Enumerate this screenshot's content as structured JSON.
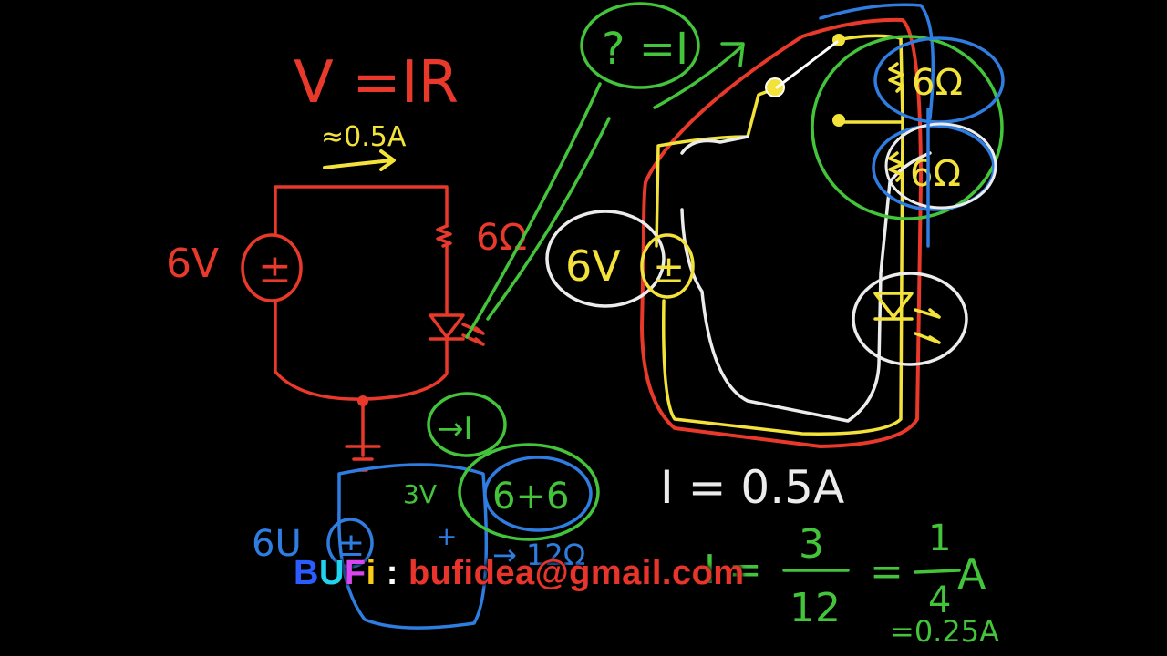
{
  "colors": {
    "background": "#000000",
    "red": "#e8392b",
    "yellow": "#f2e23a",
    "white": "#ececec",
    "green": "#43c43a",
    "blue": "#2f7de0",
    "watermark_email": "#e8342a"
  },
  "left_circuit": {
    "formula": "V =IR",
    "approx_current": "≈0.5A",
    "voltage_label": "6V",
    "source_symbol": "±",
    "resistance_label": "6Ω"
  },
  "question_bubble": {
    "text": "? =I"
  },
  "right_circuit": {
    "source_voltage": "6V",
    "source_symbol": "±",
    "resistor_top": "6Ω",
    "resistor_bottom": "6Ω",
    "current_result": "I = 0.5A"
  },
  "bottom_circuit": {
    "current_bubble": "→I",
    "voltage_label": "3V",
    "plus_sign": "+",
    "sum_label": "6+6",
    "source_voltage": "6U",
    "source_symbol": "±",
    "equivalent": "→ 12Ω"
  },
  "fraction_calc": {
    "lhs": "I =",
    "numerator": "3",
    "denominator": "12",
    "equals": "=",
    "result_numerator": "1",
    "result_denominator": "4",
    "result_unit": "A",
    "decimal_result": "=0.25A"
  },
  "watermark": {
    "brand_b": "B",
    "brand_u": "U",
    "brand_f": "F",
    "brand_i": "i",
    "separator": " : ",
    "email": "bufidea@gmail.com"
  },
  "brand_colors": {
    "b": "#2a5cff",
    "u": "#22d3ee",
    "f": "#d946ef",
    "i": "#facc15"
  }
}
